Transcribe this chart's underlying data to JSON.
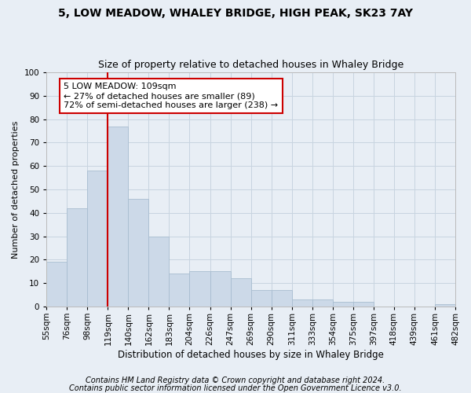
{
  "title": "5, LOW MEADOW, WHALEY BRIDGE, HIGH PEAK, SK23 7AY",
  "subtitle": "Size of property relative to detached houses in Whaley Bridge",
  "xlabel": "Distribution of detached houses by size in Whaley Bridge",
  "ylabel": "Number of detached properties",
  "bar_values": [
    19,
    42,
    58,
    77,
    46,
    30,
    14,
    15,
    15,
    12,
    7,
    7,
    3,
    3,
    2,
    2,
    0,
    0,
    0,
    1
  ],
  "bin_labels": [
    "55sqm",
    "76sqm",
    "98sqm",
    "119sqm",
    "140sqm",
    "162sqm",
    "183sqm",
    "204sqm",
    "226sqm",
    "247sqm",
    "269sqm",
    "290sqm",
    "311sqm",
    "333sqm",
    "354sqm",
    "375sqm",
    "397sqm",
    "418sqm",
    "439sqm",
    "461sqm",
    "482sqm"
  ],
  "bar_color": "#ccd9e8",
  "bar_edge_color": "#a8bdd0",
  "grid_color": "#c8d4e0",
  "bg_color": "#e8eef5",
  "vline_color": "#cc0000",
  "vline_bar_index": 3,
  "annotation_text": "5 LOW MEADOW: 109sqm\n← 27% of detached houses are smaller (89)\n72% of semi-detached houses are larger (238) →",
  "annotation_box_facecolor": "#ffffff",
  "annotation_box_edgecolor": "#cc0000",
  "ylim": [
    0,
    100
  ],
  "yticks": [
    0,
    10,
    20,
    30,
    40,
    50,
    60,
    70,
    80,
    90,
    100
  ],
  "footnote1": "Contains HM Land Registry data © Crown copyright and database right 2024.",
  "footnote2": "Contains public sector information licensed under the Open Government Licence v3.0.",
  "title_fontsize": 10,
  "subtitle_fontsize": 9,
  "xlabel_fontsize": 8.5,
  "ylabel_fontsize": 8,
  "tick_fontsize": 7.5,
  "annot_fontsize": 8,
  "footnote_fontsize": 7
}
